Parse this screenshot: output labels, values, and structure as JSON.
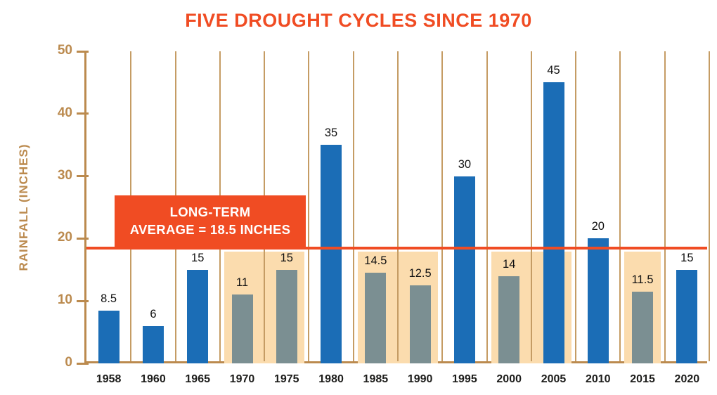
{
  "title": "FIVE DROUGHT CYCLES SINCE 1970",
  "chart_data": {
    "type": "bar",
    "title": "FIVE DROUGHT CYCLES SINCE 1970",
    "xlabel": "",
    "ylabel": "RAINFALL (INCHES)",
    "ylim": [
      0,
      50
    ],
    "yticks": [
      0,
      10,
      20,
      30,
      40,
      50
    ],
    "grid": "vertical",
    "legend_position": "none",
    "categories": [
      "1958",
      "1960",
      "1965",
      "1970",
      "1975",
      "1980",
      "1985",
      "1990",
      "1995",
      "2000",
      "2005",
      "2010",
      "2015",
      "2020"
    ],
    "values": [
      8.5,
      6,
      15,
      11,
      15,
      35,
      14.5,
      12.5,
      30,
      14,
      45,
      20,
      11.5,
      15
    ],
    "bar_labels": [
      "8.5",
      "6",
      "15",
      "11",
      "15",
      "35",
      "14.5",
      "12.5",
      "30",
      "14",
      "45",
      "20",
      "11.5",
      "15"
    ],
    "drought_years": [
      "1970",
      "1975",
      "1985",
      "1990",
      "2000",
      "2015"
    ],
    "highlight_bands": [
      {
        "from": "1970",
        "to": "1975"
      },
      {
        "from": "1985",
        "to": "1990"
      },
      {
        "from": "2000",
        "to": "2005"
      },
      {
        "from": "2015",
        "to": "2015"
      }
    ],
    "average_line": {
      "value": 18.5,
      "label_line1": "LONG-TERM",
      "label_line2": "AVERAGE = 18.5 INCHES"
    },
    "colors": {
      "accent": "#f04c23",
      "bar_blue": "#1b6db6",
      "bar_gray": "#7b8f92",
      "band_peach": "#fbdcae",
      "axis_tan": "#bb8a4e",
      "grid_tan": "#c59c64",
      "label_dark": "#1d1d1b"
    }
  }
}
